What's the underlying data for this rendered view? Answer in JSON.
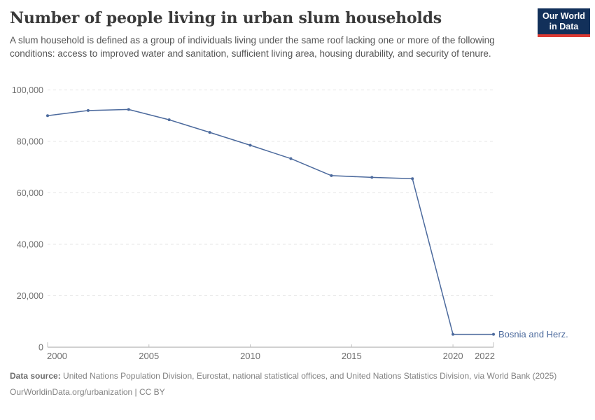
{
  "header": {
    "title": "Number of people living in urban slum households",
    "subtitle": "A slum household is defined as a group of individuals living under the same roof lacking one or more of the following conditions: access to improved water and sanitation, sufficient living area, housing durability, and security of tenure.",
    "logo": {
      "line1": "Our World",
      "line2": "in Data",
      "bg_color": "#12305a",
      "accent_color": "#dc3a33"
    }
  },
  "chart_data": {
    "type": "line",
    "title": "Number of people living in urban slum households",
    "x": [
      2000,
      2002,
      2004,
      2006,
      2008,
      2010,
      2012,
      2014,
      2016,
      2018,
      2020,
      2022
    ],
    "series": [
      {
        "name": "Bosnia and Herz.",
        "color": "#4C6A9D",
        "values": [
          90000,
          92000,
          92400,
          88400,
          83500,
          78500,
          73300,
          66700,
          66000,
          65500,
          5000,
          5000
        ]
      }
    ],
    "xlabel": "",
    "ylabel": "",
    "xlim": [
      2000,
      2022
    ],
    "ylim": [
      0,
      100000
    ],
    "xticks": [
      2000,
      2005,
      2010,
      2015,
      2020,
      2022
    ],
    "yticks": [
      0,
      20000,
      40000,
      60000,
      80000,
      100000
    ],
    "grid": "horizontal-dashed",
    "legend_position": "end-of-line-label",
    "colors": {
      "gridline": "#e4e4e4",
      "axis_line": "#a3a3a3",
      "tick": "#c2c2c2",
      "tick_label": "#6f6f6f"
    }
  },
  "footer": {
    "datasource_label": "Data source:",
    "datasource_text": "United Nations Population Division, Eurostat, national statistical offices, and United Nations Statistics Division, via World Bank (2025)",
    "url_text": "OurWorldinData.org/urbanization | CC BY"
  }
}
